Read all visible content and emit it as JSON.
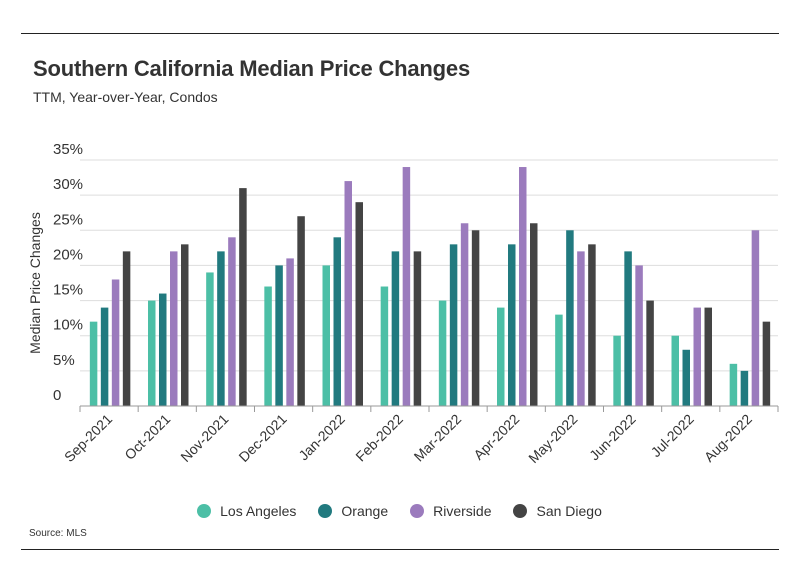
{
  "header": {
    "title": "Southern California Median Price Changes",
    "subtitle": "TTM, Year-over-Year, Condos"
  },
  "footer": {
    "source": "Source:  MLS"
  },
  "colors": {
    "Los Angeles": "#4cbfa6",
    "Orange": "#217a7f",
    "Riverside": "#9b7bbd",
    "San Diego": "#444444",
    "grid": "#dddddd",
    "axis": "#999999"
  },
  "chart_data": {
    "type": "bar",
    "title": "Southern California Median Price Changes",
    "subtitle": "TTM, Year-over-Year, Condos",
    "xlabel": "",
    "ylabel": "Median Price Changes",
    "ylim": [
      0,
      35
    ],
    "yticks": [
      0,
      5,
      10,
      15,
      20,
      25,
      30,
      35
    ],
    "ytick_labels": [
      "0",
      "5%",
      "10%",
      "15%",
      "20%",
      "25%",
      "30%",
      "35%"
    ],
    "grid": true,
    "legend_position": "bottom-center",
    "categories": [
      "Sep-2021",
      "Oct-2021",
      "Nov-2021",
      "Dec-2021",
      "Jan-2022",
      "Feb-2022",
      "Mar-2022",
      "Apr-2022",
      "May-2022",
      "Jun-2022",
      "Jul-2022",
      "Aug-2022"
    ],
    "series": [
      {
        "name": "Los Angeles",
        "values": [
          12,
          15,
          19,
          17,
          20,
          17,
          15,
          14,
          13,
          10,
          10,
          6
        ]
      },
      {
        "name": "Orange",
        "values": [
          14,
          16,
          22,
          20,
          24,
          22,
          23,
          23,
          25,
          22,
          8,
          5
        ]
      },
      {
        "name": "Riverside",
        "values": [
          18,
          22,
          24,
          21,
          32,
          34,
          26,
          34,
          22,
          20,
          14,
          25
        ]
      },
      {
        "name": "San Diego",
        "values": [
          22,
          23,
          31,
          27,
          29,
          22,
          25,
          26,
          23,
          15,
          14,
          12
        ]
      }
    ]
  }
}
